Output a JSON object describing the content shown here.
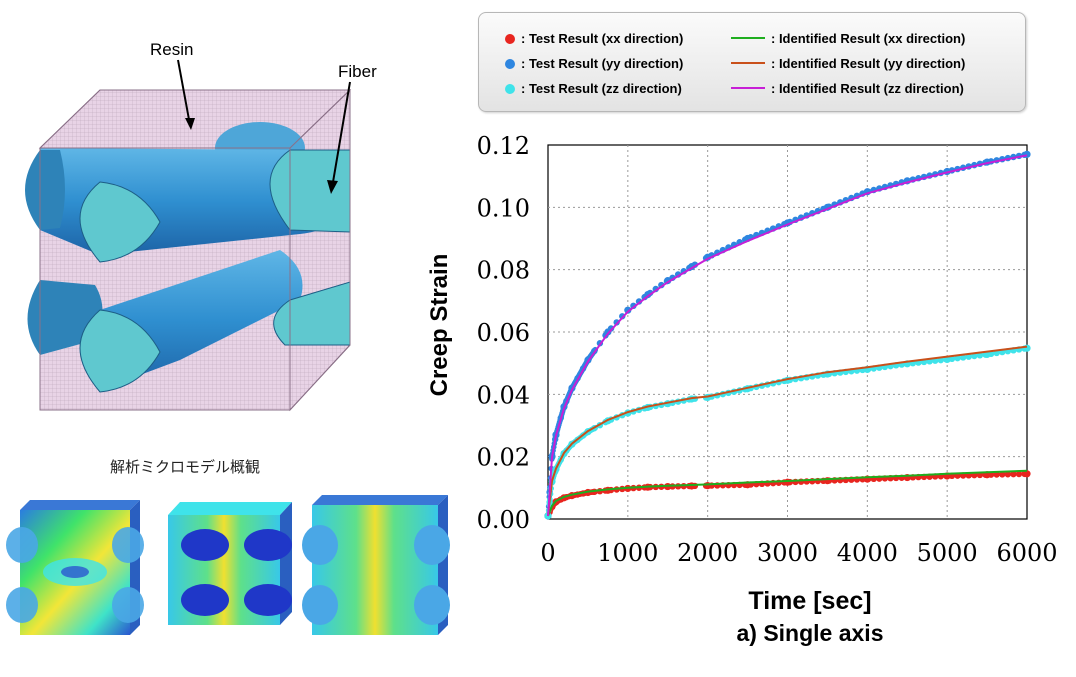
{
  "figure": {
    "resin_label": "Resin",
    "fiber_label": "Fiber",
    "model_caption": "解析ミクロモデル概観",
    "subcaption": "a) Single axis"
  },
  "legend": {
    "items": [
      {
        "label": ": Test Result (xx direction)",
        "kind": "dot",
        "color": "#e8251f"
      },
      {
        "label": ": Test Result (yy direction)",
        "kind": "dot",
        "color": "#2e86e0"
      },
      {
        "label": ": Test Result (zz direction)",
        "kind": "dot",
        "color": "#3fe3ea"
      },
      {
        "label": ": Identified Result (xx direction)",
        "kind": "line",
        "color": "#1fae1f"
      },
      {
        "label": ": Identified Result (yy direction)",
        "kind": "line",
        "color": "#c9501a"
      },
      {
        "label": ": Identified Result (zz direction)",
        "kind": "line",
        "color": "#c71fd6"
      }
    ]
  },
  "chart_data": {
    "type": "line",
    "xlabel": "Time [sec]",
    "ylabel": "Creep Strain",
    "xlim": [
      0,
      6000
    ],
    "ylim": [
      0,
      0.12
    ],
    "xticks": [
      0,
      1000,
      2000,
      3000,
      4000,
      5000,
      6000
    ],
    "yticks": [
      "0.00",
      "0.02",
      "0.04",
      "0.06",
      "0.08",
      "0.10",
      "0.12"
    ],
    "grid": true,
    "x": [
      0,
      50,
      100,
      200,
      300,
      500,
      750,
      1000,
      1250,
      1500,
      1800,
      2000,
      2500,
      3000,
      3500,
      4000,
      4500,
      5000,
      5500,
      6000
    ],
    "series": [
      {
        "name": "Test Result (xx direction)",
        "kind": "markers",
        "color": "#e8251f",
        "values": [
          0.001,
          0.004,
          0.0055,
          0.0068,
          0.0075,
          0.0085,
          0.0092,
          0.0098,
          0.0102,
          0.0104,
          0.0106,
          0.0107,
          0.011,
          0.0118,
          0.0123,
          0.0128,
          0.0133,
          0.0138,
          0.0142,
          0.0145
        ]
      },
      {
        "name": "Test Result (yy direction)",
        "kind": "markers",
        "color": "#2e86e0",
        "values": [
          0.001,
          0.02,
          0.027,
          0.036,
          0.042,
          0.051,
          0.06,
          0.067,
          0.072,
          0.0765,
          0.081,
          0.084,
          0.09,
          0.095,
          0.1,
          0.105,
          0.1085,
          0.1115,
          0.1145,
          0.117
        ]
      },
      {
        "name": "Test Result (zz direction)",
        "kind": "markers",
        "color": "#3fe3ea",
        "values": [
          0.001,
          0.012,
          0.016,
          0.021,
          0.024,
          0.028,
          0.0315,
          0.034,
          0.0358,
          0.037,
          0.0385,
          0.039,
          0.0418,
          0.0445,
          0.0465,
          0.048,
          0.0498,
          0.0512,
          0.0528,
          0.0548
        ]
      },
      {
        "name": "Identified Result (xx direction)",
        "kind": "line",
        "color": "#1fae1f",
        "values": [
          0.001,
          0.0042,
          0.0058,
          0.0071,
          0.0078,
          0.0088,
          0.0095,
          0.01,
          0.0104,
          0.0107,
          0.0109,
          0.0111,
          0.0117,
          0.0122,
          0.0128,
          0.0134,
          0.0139,
          0.0145,
          0.015,
          0.0155
        ]
      },
      {
        "name": "Identified Result (yy direction)",
        "kind": "line",
        "color": "#c9501a",
        "values": [
          0.001,
          0.0122,
          0.0162,
          0.0212,
          0.0242,
          0.0282,
          0.0318,
          0.0343,
          0.0361,
          0.0373,
          0.0388,
          0.0393,
          0.0421,
          0.0449,
          0.0471,
          0.0487,
          0.0505,
          0.0521,
          0.0537,
          0.0553
        ]
      },
      {
        "name": "Identified Result (zz direction)",
        "kind": "line",
        "color": "#c71fd6",
        "values": [
          0.001,
          0.0198,
          0.0268,
          0.0355,
          0.0415,
          0.0505,
          0.0595,
          0.0665,
          0.0715,
          0.076,
          0.0805,
          0.0835,
          0.0892,
          0.0945,
          0.0995,
          0.1045,
          0.108,
          0.1112,
          0.1142,
          0.1167
        ]
      }
    ]
  }
}
